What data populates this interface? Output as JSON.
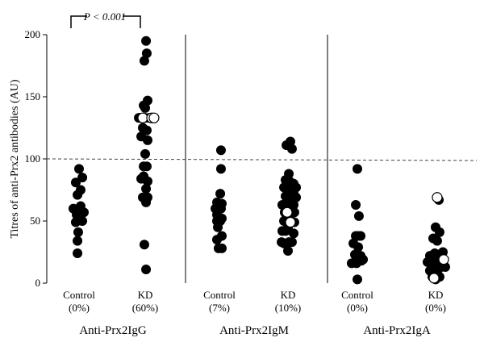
{
  "chart_data": {
    "type": "scatter",
    "ylabel": "Titres of anti-Prx2 antibodies (AU)",
    "ylim": [
      0,
      200
    ],
    "yticks": [
      0,
      50,
      100,
      150,
      200
    ],
    "cutoff": 100,
    "significance": "P < 0.001",
    "panels": [
      {
        "label": "Anti-Prx2IgG",
        "groups": [
          {
            "name": "Control",
            "pct": "(0%)",
            "filled": [
              [
                0,
                92
              ],
              [
                -0.27,
                81
              ],
              [
                0.27,
                85
              ],
              [
                0.13,
                75
              ],
              [
                -0.13,
                71
              ],
              [
                -0.47,
                60
              ],
              [
                0.13,
                62
              ],
              [
                0.4,
                57
              ],
              [
                -0.2,
                55
              ],
              [
                -0.27,
                49
              ],
              [
                0.07,
                52
              ],
              [
                0.27,
                50
              ],
              [
                -0.07,
                41
              ],
              [
                -0.13,
                34
              ],
              [
                -0.13,
                24
              ]
            ],
            "open": []
          },
          {
            "name": "KD",
            "pct": "(60%)",
            "filled": [
              [
                0.07,
                195
              ],
              [
                0.13,
                185
              ],
              [
                -0.07,
                179
              ],
              [
                -0.13,
                143
              ],
              [
                0.2,
                147
              ],
              [
                0,
                141
              ],
              [
                -0.53,
                133
              ],
              [
                -0.4,
                133
              ],
              [
                0,
                133
              ],
              [
                0.33,
                133
              ],
              [
                -0.2,
                125
              ],
              [
                0.13,
                123
              ],
              [
                -0.33,
                118
              ],
              [
                0.2,
                115
              ],
              [
                0,
                104
              ],
              [
                -0.13,
                94
              ],
              [
                0.13,
                94
              ],
              [
                -0.33,
                84
              ],
              [
                -0.13,
                86
              ],
              [
                0.2,
                82
              ],
              [
                0.07,
                76
              ],
              [
                -0.2,
                69
              ],
              [
                0.2,
                69
              ],
              [
                0.07,
                65
              ],
              [
                -0.07,
                31
              ],
              [
                0.07,
                11
              ]
            ],
            "open": [
              [
                -0.2,
                133
              ],
              [
                0.53,
                133
              ],
              [
                0.73,
                133
              ]
            ]
          }
        ]
      },
      {
        "label": "Anti-Prx2IgM",
        "groups": [
          {
            "name": "Control",
            "pct": "(7%)",
            "filled": [
              [
                0.13,
                107
              ],
              [
                0.13,
                92
              ],
              [
                0.07,
                72
              ],
              [
                -0.2,
                65
              ],
              [
                0.2,
                64
              ],
              [
                -0.33,
                60
              ],
              [
                -0.07,
                63
              ],
              [
                0.13,
                60
              ],
              [
                -0.2,
                55
              ],
              [
                0.2,
                52
              ],
              [
                -0.2,
                50
              ],
              [
                0.07,
                50
              ],
              [
                -0.13,
                45
              ],
              [
                0.2,
                38
              ],
              [
                -0.2,
                35
              ],
              [
                0.2,
                28
              ],
              [
                -0.07,
                28
              ]
            ],
            "open": []
          },
          {
            "name": "KD",
            "pct": "(10%)",
            "filled": [
              [
                0.2,
                114
              ],
              [
                -0.13,
                111
              ],
              [
                0.33,
                108
              ],
              [
                0.07,
                88
              ],
              [
                -0.2,
                83
              ],
              [
                0.13,
                82
              ],
              [
                0.47,
                80
              ],
              [
                0.2,
                79
              ],
              [
                -0.33,
                77
              ],
              [
                0.67,
                77
              ],
              [
                0,
                72
              ],
              [
                0.47,
                72
              ],
              [
                -0.2,
                70
              ],
              [
                0.27,
                70
              ],
              [
                0.67,
                69
              ],
              [
                -0.47,
                63
              ],
              [
                0.07,
                64
              ],
              [
                0.47,
                63
              ],
              [
                -0.27,
                57
              ],
              [
                0.2,
                57
              ],
              [
                0.53,
                57
              ],
              [
                -0.13,
                53
              ],
              [
                0.13,
                53
              ],
              [
                0.53,
                49
              ],
              [
                -0.33,
                50
              ],
              [
                0,
                45
              ],
              [
                -0.47,
                42
              ],
              [
                -0.2,
                42
              ],
              [
                0.47,
                40
              ],
              [
                -0.53,
                33
              ],
              [
                -0.33,
                32
              ],
              [
                0.07,
                33
              ],
              [
                0.33,
                33
              ],
              [
                0,
                26
              ]
            ],
            "open": [
              [
                -0.07,
                57
              ],
              [
                0.2,
                49
              ]
            ]
          }
        ]
      },
      {
        "label": "Anti-Prx2IgA",
        "groups": [
          {
            "name": "Control",
            "pct": "(0%)",
            "filled": [
              [
                0,
                92
              ],
              [
                -0.13,
                63
              ],
              [
                0.13,
                54
              ],
              [
                -0.13,
                38
              ],
              [
                0.07,
                38
              ],
              [
                0.27,
                38
              ],
              [
                -0.33,
                32
              ],
              [
                0.07,
                29
              ],
              [
                -0.2,
                23
              ],
              [
                0.27,
                22
              ],
              [
                0.47,
                19
              ],
              [
                -0.47,
                16
              ],
              [
                -0.07,
                16
              ],
              [
                0.33,
                18
              ],
              [
                0,
                3
              ]
            ],
            "open": []
          },
          {
            "name": "KD",
            "pct": "(0%)",
            "filled": [
              [
                0.27,
                67
              ],
              [
                0,
                45
              ],
              [
                0.33,
                41
              ],
              [
                -0.2,
                36
              ],
              [
                0.13,
                34
              ],
              [
                -0.47,
                22
              ],
              [
                -0.07,
                24
              ],
              [
                0.27,
                23
              ],
              [
                0.6,
                25
              ],
              [
                -0.27,
                18
              ],
              [
                0.2,
                19
              ],
              [
                -0.67,
                17
              ],
              [
                -0.53,
                17
              ],
              [
                -0.33,
                14
              ],
              [
                -0.13,
                14
              ],
              [
                0.07,
                13
              ],
              [
                0.33,
                13
              ],
              [
                0.47,
                13
              ],
              [
                0.6,
                14
              ],
              [
                0.8,
                13
              ],
              [
                -0.47,
                10
              ],
              [
                -0.2,
                9
              ],
              [
                0.13,
                9
              ],
              [
                -0.27,
                5
              ],
              [
                0,
                3
              ],
              [
                0.33,
                5
              ]
            ],
            "open": [
              [
                0.13,
                69
              ],
              [
                -0.13,
                4
              ],
              [
                0.67,
                19
              ]
            ]
          }
        ]
      }
    ]
  }
}
